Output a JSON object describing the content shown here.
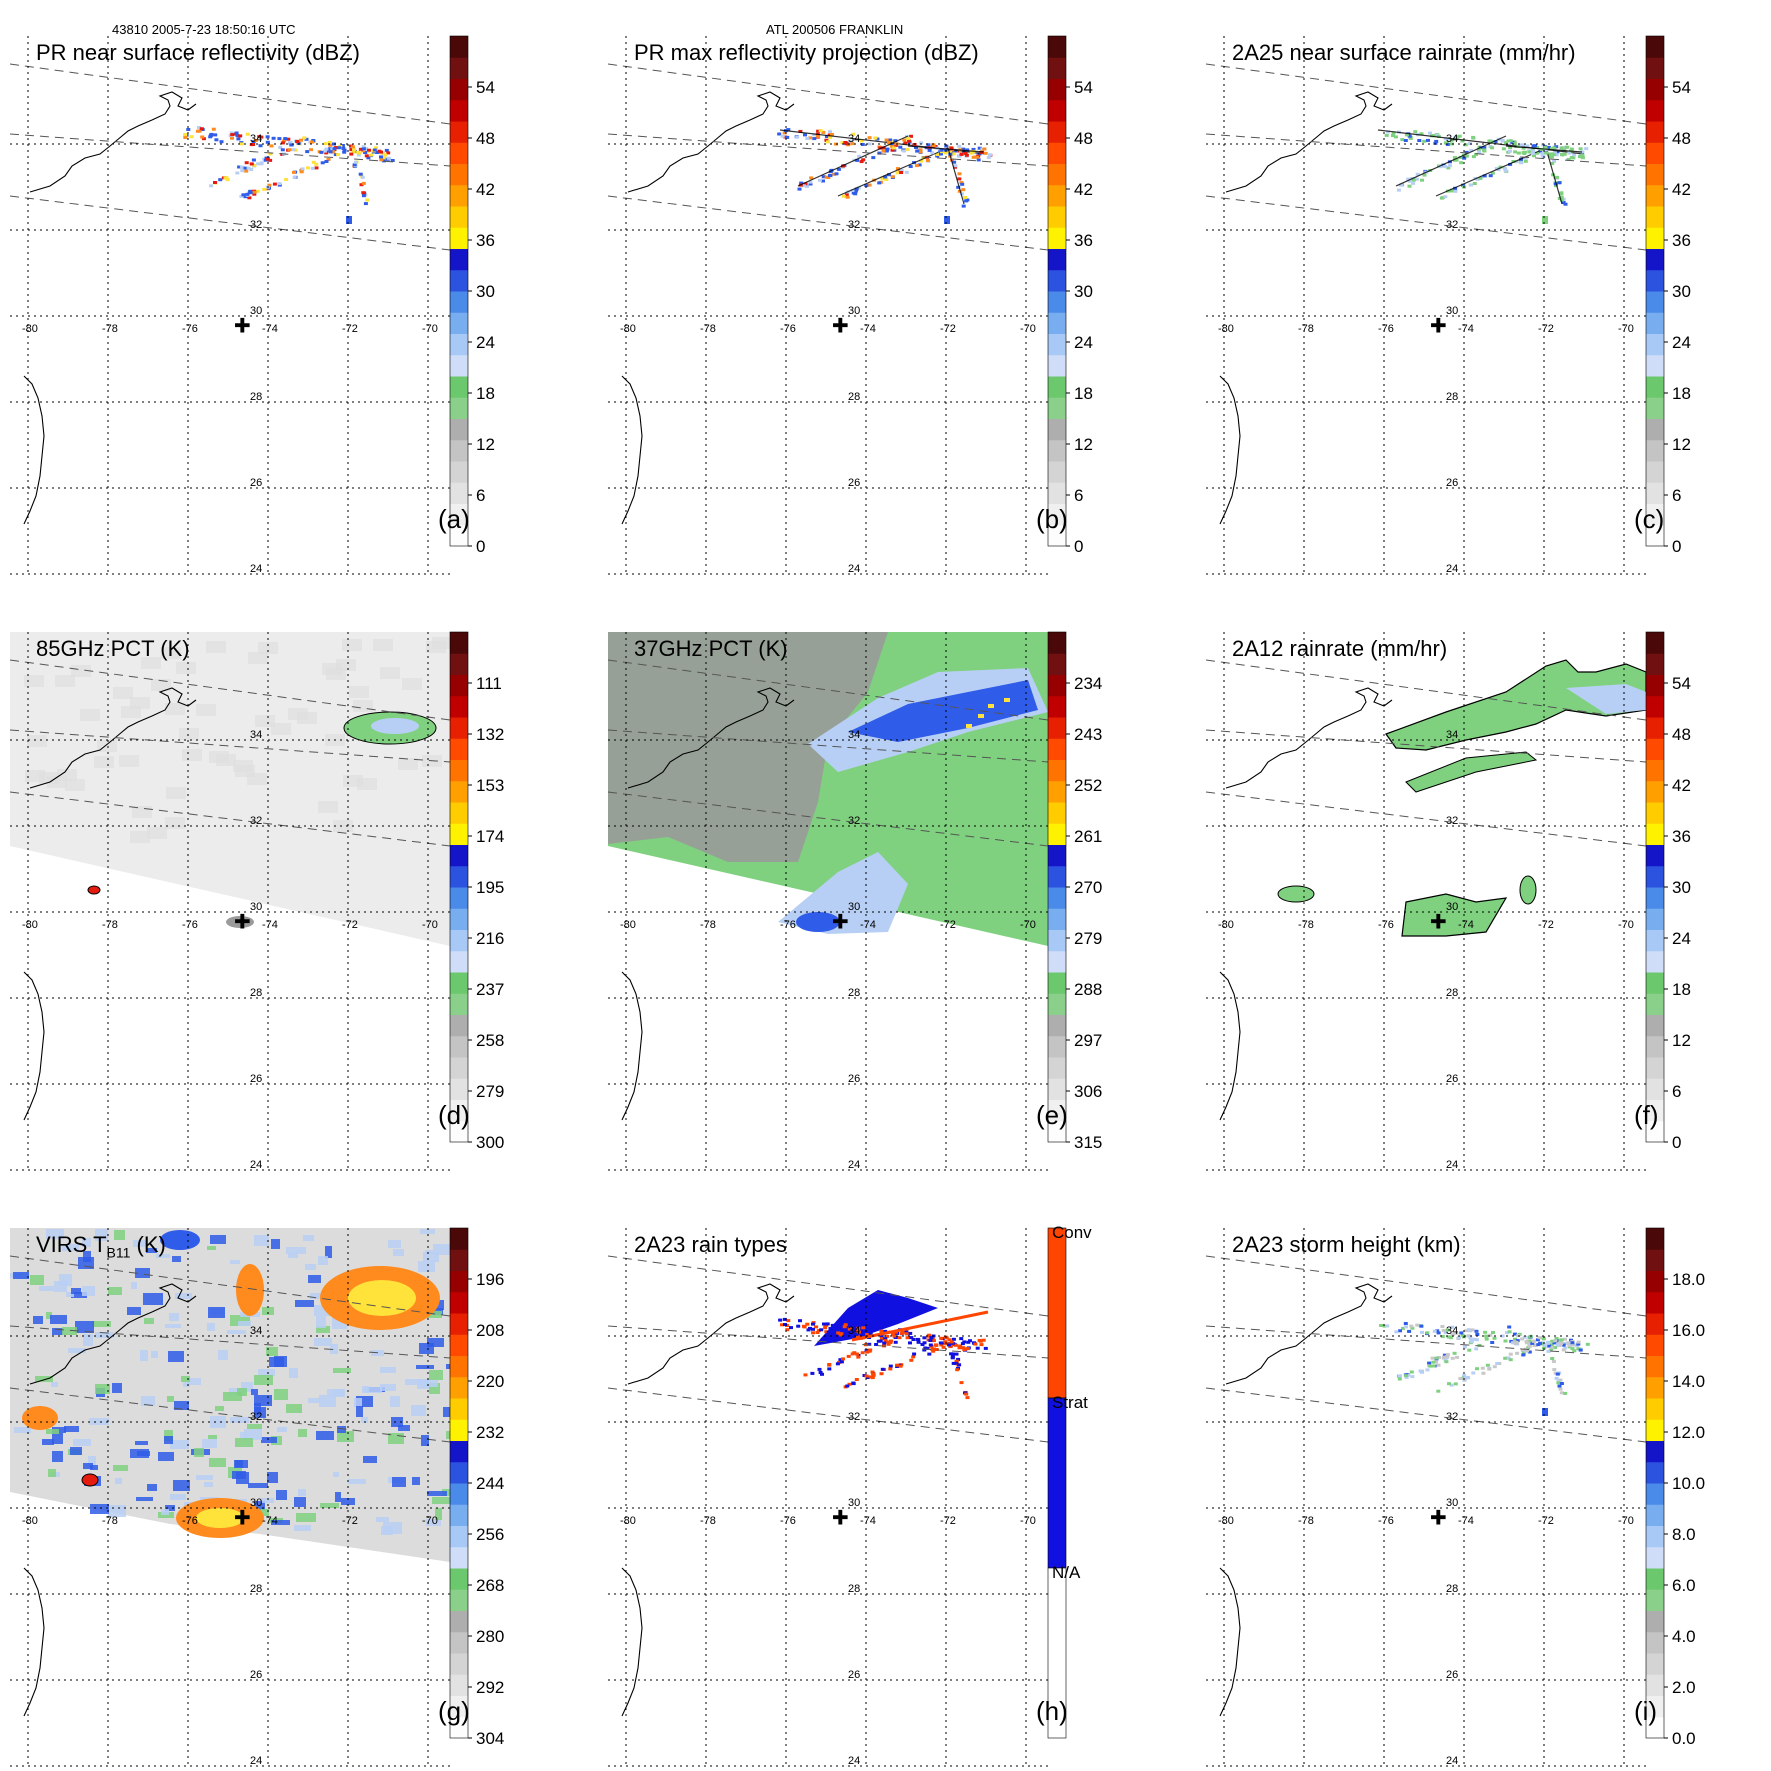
{
  "header": {
    "left": "43810 2005-7-23 18:50:16 UTC",
    "center": "ATL 200506 FRANKLIN"
  },
  "map": {
    "lon_labels": [
      "-80",
      "-78",
      "-76",
      "-74",
      "-72",
      "-70"
    ],
    "lat_labels": [
      "34",
      "32",
      "30",
      "28",
      "26",
      "24"
    ],
    "marker": "storm-center-cross"
  },
  "colors": {
    "dbz_scale": [
      "#ffffff",
      "#f2f2f2",
      "#e0e0e0",
      "#cccccc",
      "#b4b4b4",
      "#9a9a9a",
      "#8ad08a",
      "#6cc86c",
      "#c4d8f8",
      "#9cc4f6",
      "#6aa6f0",
      "#4a86e6",
      "#2840e0",
      "#1010c8",
      "#fff200",
      "#ffc800",
      "#ff9a00",
      "#ff6a00",
      "#ff3c00",
      "#e01400",
      "#b40000",
      "#8a0000",
      "#5e1010",
      "#3c0808"
    ],
    "green": "#7fd17f",
    "gray": "#9a9a9a",
    "blue": "#2f5ce8",
    "lightblue": "#b8cff5",
    "yellow": "#ffe23a",
    "orange": "#ff8a1e",
    "red": "#e51b0f",
    "conv": "#ff4500",
    "strat": "#1010e0"
  },
  "chart_data": [
    {
      "type": "heatmap",
      "id": "a",
      "title": "PR near surface reflectivity (dBZ)",
      "panel_label": "(a)",
      "colorbar_labels": [
        "54",
        "48",
        "42",
        "36",
        "30",
        "24",
        "18",
        "12",
        "6",
        "0"
      ],
      "colorbar_range": [
        0,
        60
      ],
      "swath": "pr"
    },
    {
      "type": "heatmap",
      "id": "b",
      "title": "PR max reflectivity projection (dBZ)",
      "panel_label": "(b)",
      "colorbar_labels": [
        "54",
        "48",
        "42",
        "36",
        "30",
        "24",
        "18",
        "12",
        "6",
        "0"
      ],
      "colorbar_range": [
        0,
        60
      ],
      "swath": "pr"
    },
    {
      "type": "heatmap",
      "id": "c",
      "title": "2A25 near surface rainrate (mm/hr)",
      "panel_label": "(c)",
      "colorbar_labels": [
        "54",
        "48",
        "42",
        "36",
        "30",
        "24",
        "18",
        "12",
        "6",
        "0"
      ],
      "colorbar_range": [
        0,
        60
      ],
      "swath": "pr"
    },
    {
      "type": "heatmap",
      "id": "d",
      "title": "85GHz PCT (K)",
      "panel_label": "(d)",
      "colorbar_labels": [
        "111",
        "132",
        "153",
        "174",
        "195",
        "216",
        "237",
        "258",
        "279",
        "300"
      ],
      "colorbar_range": [
        300,
        90
      ],
      "swath": "tmi"
    },
    {
      "type": "heatmap",
      "id": "e",
      "title": "37GHz PCT (K)",
      "panel_label": "(e)",
      "colorbar_labels": [
        "234",
        "243",
        "252",
        "261",
        "270",
        "279",
        "288",
        "297",
        "306",
        "315"
      ],
      "colorbar_range": [
        315,
        225
      ],
      "swath": "tmi"
    },
    {
      "type": "heatmap",
      "id": "f",
      "title": "2A12 rainrate (mm/hr)",
      "panel_label": "(f)",
      "colorbar_labels": [
        "54",
        "48",
        "42",
        "36",
        "30",
        "24",
        "18",
        "12",
        "6",
        "0"
      ],
      "colorbar_range": [
        0,
        60
      ],
      "swath": "tmi"
    },
    {
      "type": "heatmap",
      "id": "g",
      "title": "VIRS T",
      "title_sub": "B11",
      "title_suffix": "(K)",
      "panel_label": "(g)",
      "colorbar_labels": [
        "196",
        "208",
        "220",
        "232",
        "244",
        "256",
        "268",
        "280",
        "292",
        "304"
      ],
      "colorbar_range": [
        304,
        184
      ],
      "swath": "virs"
    },
    {
      "type": "heatmap",
      "id": "h",
      "title": "2A23 rain types",
      "panel_label": "(h)",
      "colorbar_labels": [
        "Conv",
        "Strat",
        "N/A"
      ],
      "colorbar_categories": [
        "Conv",
        "Strat",
        "N/A"
      ],
      "swath": "pr"
    },
    {
      "type": "heatmap",
      "id": "i",
      "title": "2A23 storm height (km)",
      "panel_label": "(i)",
      "colorbar_labels": [
        "18.0",
        "16.0",
        "14.0",
        "12.0",
        "10.0",
        "8.0",
        "6.0",
        "4.0",
        "2.0",
        "0.0"
      ],
      "colorbar_range": [
        0,
        20
      ],
      "swath": "pr"
    }
  ]
}
